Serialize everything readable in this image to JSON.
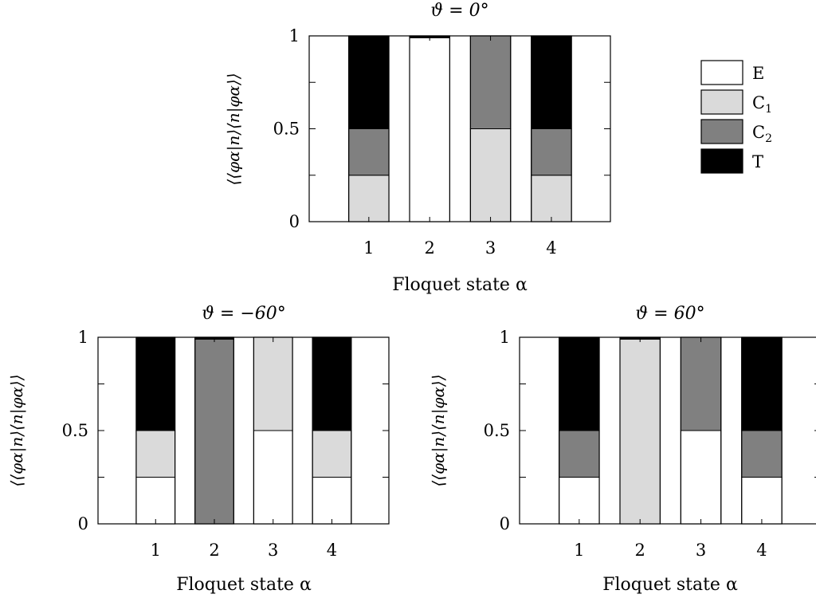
{
  "legend": {
    "items": [
      {
        "label": "E",
        "sub": "",
        "color": "#ffffff"
      },
      {
        "label": "C",
        "sub": "1",
        "color": "#dadada"
      },
      {
        "label": "C",
        "sub": "2",
        "color": "#808080"
      },
      {
        "label": "T",
        "sub": "",
        "color": "#000000"
      }
    ]
  },
  "chart_data": [
    {
      "type": "bar",
      "stacked": true,
      "title": "ϑ = 0°",
      "xlabel": "Floquet state α",
      "ylabel": "⟨⟨φα|n⟩⟨n|φα⟩⟩",
      "ylim": [
        0,
        1
      ],
      "yticks": [
        "0",
        "0.5",
        "1"
      ],
      "categories": [
        "1",
        "2",
        "3",
        "4"
      ],
      "series": [
        {
          "name": "E",
          "values": [
            0.0,
            0.99,
            0.0,
            0.0
          ]
        },
        {
          "name": "C1",
          "values": [
            0.25,
            0.0,
            0.5,
            0.25
          ]
        },
        {
          "name": "C2",
          "values": [
            0.25,
            0.0,
            0.5,
            0.25
          ]
        },
        {
          "name": "T",
          "values": [
            0.5,
            0.01,
            0.0,
            0.5
          ]
        }
      ]
    },
    {
      "type": "bar",
      "stacked": true,
      "title": "ϑ = −60°",
      "xlabel": "Floquet state α",
      "ylabel": "⟨⟨φα|n⟩⟨n|φα⟩⟩",
      "ylim": [
        0,
        1
      ],
      "yticks": [
        "0",
        "0.5",
        "1"
      ],
      "categories": [
        "1",
        "2",
        "3",
        "4"
      ],
      "series": [
        {
          "name": "E",
          "values": [
            0.25,
            0.0,
            0.5,
            0.25
          ]
        },
        {
          "name": "C1",
          "values": [
            0.25,
            0.0,
            0.5,
            0.25
          ]
        },
        {
          "name": "C2",
          "values": [
            0.0,
            0.99,
            0.0,
            0.0
          ]
        },
        {
          "name": "T",
          "values": [
            0.5,
            0.01,
            0.0,
            0.5
          ]
        }
      ]
    },
    {
      "type": "bar",
      "stacked": true,
      "title": "ϑ = 60°",
      "xlabel": "Floquet state α",
      "ylabel": "⟨⟨φα|n⟩⟨n|φα⟩⟩",
      "ylim": [
        0,
        1
      ],
      "yticks": [
        "0",
        "0.5",
        "1"
      ],
      "categories": [
        "1",
        "2",
        "3",
        "4"
      ],
      "series": [
        {
          "name": "E",
          "values": [
            0.25,
            0.0,
            0.5,
            0.25
          ]
        },
        {
          "name": "C1",
          "values": [
            0.0,
            0.99,
            0.0,
            0.0
          ]
        },
        {
          "name": "C2",
          "values": [
            0.25,
            0.0,
            0.5,
            0.25
          ]
        },
        {
          "name": "T",
          "values": [
            0.5,
            0.01,
            0.0,
            0.5
          ]
        }
      ]
    }
  ]
}
